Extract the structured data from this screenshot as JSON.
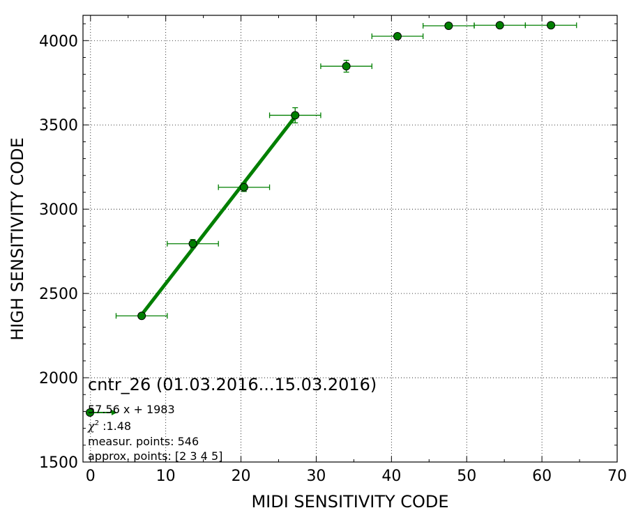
{
  "chart_data": {
    "type": "scatter",
    "xlabel": "MIDI SENSITIVITY CODE",
    "ylabel": "HIGH SENSITIVITY CODE",
    "xlim": [
      -1,
      70
    ],
    "ylim": [
      1500,
      4150
    ],
    "xticks": [
      0,
      10,
      20,
      30,
      40,
      50,
      60,
      70
    ],
    "yticks": [
      1500,
      2000,
      2500,
      3000,
      3500,
      4000
    ],
    "grid": true,
    "color": "#007f00",
    "series": [
      {
        "points": [
          {
            "x": 6.8,
            "y": 2367,
            "xerr": 3.4,
            "yerr": 10
          },
          {
            "x": 13.6,
            "y": 2795,
            "xerr": 3.4,
            "yerr": 25
          },
          {
            "x": 20.4,
            "y": 3130,
            "xerr": 3.4,
            "yerr": 25
          },
          {
            "x": 27.2,
            "y": 3557,
            "xerr": 3.4,
            "yerr": 45
          },
          {
            "x": 34.0,
            "y": 3848,
            "xerr": 3.4,
            "yerr": 35
          },
          {
            "x": 40.8,
            "y": 4026,
            "xerr": 3.4,
            "yerr": 10
          },
          {
            "x": 47.6,
            "y": 4088,
            "xerr": 3.4,
            "yerr": 5
          },
          {
            "x": 54.4,
            "y": 4091,
            "xerr": 3.4,
            "yerr": 5
          },
          {
            "x": 61.2,
            "y": 4091,
            "xerr": 3.4,
            "yerr": 5
          }
        ]
      }
    ],
    "fit": {
      "slope": 57.56,
      "intercept": 1983,
      "x_range": [
        6.8,
        27.2
      ]
    },
    "legend": {
      "title": "cntr_26 (01.03.2016...15.03.2016)",
      "fit_label": "57.56 x + 1983",
      "chi_symbol": "χ",
      "chi_value": ":1.48",
      "measur_points": "measur. points: 546",
      "approx_points": "approx. points: [2 3 4 5]"
    }
  }
}
